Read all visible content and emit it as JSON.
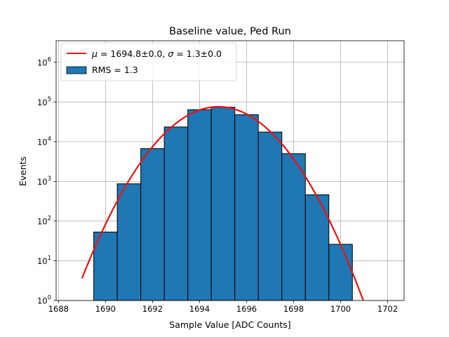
{
  "chart_data": {
    "type": "bar",
    "title": "Baseline value, Ped Run",
    "xlabel": "Sample Value [ADC Counts]",
    "ylabel": "Events",
    "xlim": [
      1687.9,
      1702.7
    ],
    "ylim": [
      1,
      3500000
    ],
    "yscale": "log",
    "grid": true,
    "legend_position": "top-left",
    "x_ticks": [
      {
        "value": 1688,
        "label": "1688"
      },
      {
        "value": 1690,
        "label": "1690"
      },
      {
        "value": 1692,
        "label": "1692"
      },
      {
        "value": 1694,
        "label": "1694"
      },
      {
        "value": 1696,
        "label": "1696"
      },
      {
        "value": 1698,
        "label": "1698"
      },
      {
        "value": 1700,
        "label": "1700"
      },
      {
        "value": 1702,
        "label": "1702"
      }
    ],
    "y_ticks": [
      {
        "value": 1,
        "base": "10",
        "exp": "0"
      },
      {
        "value": 10,
        "base": "10",
        "exp": "1"
      },
      {
        "value": 100,
        "base": "10",
        "exp": "2"
      },
      {
        "value": 1000,
        "base": "10",
        "exp": "3"
      },
      {
        "value": 10000,
        "base": "10",
        "exp": "4"
      },
      {
        "value": 100000,
        "base": "10",
        "exp": "5"
      },
      {
        "value": 1000000,
        "base": "10",
        "exp": "6"
      }
    ],
    "histogram": {
      "name": "RMS = 1.3",
      "color": "#1f77b4",
      "bins": [
        {
          "left": 1689.5,
          "right": 1690.5,
          "count": 53
        },
        {
          "left": 1690.5,
          "right": 1691.5,
          "count": 870
        },
        {
          "left": 1691.5,
          "right": 1692.5,
          "count": 6700
        },
        {
          "left": 1692.5,
          "right": 1693.5,
          "count": 23500
        },
        {
          "left": 1693.5,
          "right": 1694.5,
          "count": 64000
        },
        {
          "left": 1694.5,
          "right": 1695.5,
          "count": 74000
        },
        {
          "left": 1695.5,
          "right": 1696.5,
          "count": 48000
        },
        {
          "left": 1696.5,
          "right": 1697.5,
          "count": 17500
        },
        {
          "left": 1697.5,
          "right": 1698.5,
          "count": 5000
        },
        {
          "left": 1698.5,
          "right": 1699.5,
          "count": 460
        },
        {
          "left": 1699.5,
          "right": 1700.5,
          "count": 26
        }
      ]
    },
    "fit": {
      "legend_mu_symbol": "μ",
      "legend_mu_text": " = 1694.8±0.0, ",
      "legend_sigma_symbol": "σ",
      "legend_sigma_text": " = 1.3±0.0",
      "color": "#ee1111",
      "mu": 1694.8,
      "sigma": 1.3,
      "amplitude": 76000,
      "x_start": 1689.0,
      "x_end": 1701.0
    }
  }
}
